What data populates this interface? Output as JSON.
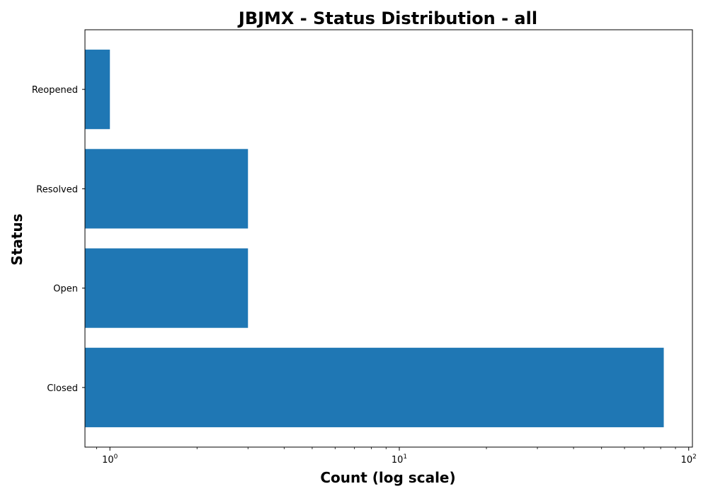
{
  "chart_data": {
    "type": "bar",
    "orientation": "horizontal",
    "title": "JBJMX - Status Distribution - all",
    "xlabel": "Count (log scale)",
    "ylabel": "Status",
    "x_scale": "log",
    "xlim": [
      0.82,
      103
    ],
    "x_ticks": [
      {
        "value": 1,
        "base": "10",
        "exp": "0"
      },
      {
        "value": 10,
        "base": "10",
        "exp": "1"
      },
      {
        "value": 100,
        "base": "10",
        "exp": "2"
      }
    ],
    "categories": [
      "Closed",
      "Open",
      "Resolved",
      "Reopened"
    ],
    "values": [
      82,
      3,
      3,
      1
    ],
    "bar_color": "#1f77b4",
    "grid": false,
    "legend": "none"
  }
}
